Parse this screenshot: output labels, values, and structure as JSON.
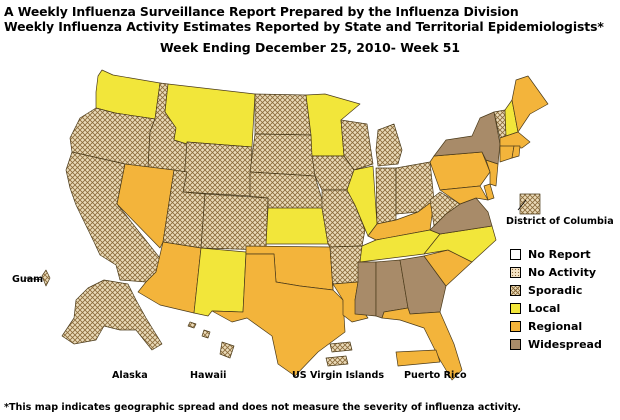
{
  "header": {
    "line1": "A Weekly Influenza Surveillance Report Prepared by the Influenza Division",
    "line2": "Weekly Influenza Activity Estimates Reported by State and Territorial Epidemiologists*",
    "week": "Week Ending December 25, 2010- Week 51"
  },
  "labels": {
    "dc": "District of Columbia",
    "guam": "Guam",
    "alaska": "Alaska",
    "hawaii": "Hawaii",
    "usvi": "US Virgin Islands",
    "pr": "Puerto Rico"
  },
  "legend": [
    {
      "key": "no_report",
      "label": "No Report",
      "color": "#ffffff",
      "pattern": "none"
    },
    {
      "key": "no_activity",
      "label": "No Activity",
      "color": "#f3e2c4",
      "pattern": "dots"
    },
    {
      "key": "sporadic",
      "label": "Sporadic",
      "color": "#eadbb9",
      "pattern": "cross"
    },
    {
      "key": "local",
      "label": "Local",
      "color": "#f2e63a",
      "pattern": "none"
    },
    {
      "key": "regional",
      "label": "Regional",
      "color": "#f3b43b",
      "pattern": "none"
    },
    {
      "key": "widespread",
      "label": "Widespread",
      "color": "#a88b69",
      "pattern": "none"
    }
  ],
  "regions": {
    "WA": "local",
    "OR": "sporadic",
    "CA": "sporadic",
    "ID": "sporadic",
    "NV": "regional",
    "AZ": "regional",
    "MT": "local",
    "WY": "sporadic",
    "UT": "sporadic",
    "CO": "sporadic",
    "NM": "local",
    "ND": "sporadic",
    "SD": "sporadic",
    "NE": "sporadic",
    "KS": "local",
    "OK": "regional",
    "TX": "regional",
    "MN": "local",
    "IA": "sporadic",
    "MO": "sporadic",
    "AR": "sporadic",
    "LA": "regional",
    "WI": "sporadic",
    "IL": "local",
    "MI": "sporadic",
    "IN": "sporadic",
    "OH": "sporadic",
    "KY": "regional",
    "TN": "local",
    "MS": "widespread",
    "AL": "widespread",
    "GA": "widespread",
    "FL": "regional",
    "SC": "regional",
    "NC": "local",
    "VA": "widespread",
    "WV": "sporadic",
    "PA": "regional",
    "NY": "widespread",
    "ME": "regional",
    "VT": "sporadic",
    "NH": "local",
    "MA": "regional",
    "CT": "regional",
    "RI": "regional",
    "NJ": "regional",
    "DE": "regional",
    "MD": "regional",
    "DC": "sporadic",
    "AK": "sporadic",
    "HI": "sporadic",
    "GU": "sporadic",
    "PR": "regional",
    "VI": "sporadic"
  },
  "footnote": "*This map indicates geographic spread and does not measure the severity of influenza activity."
}
